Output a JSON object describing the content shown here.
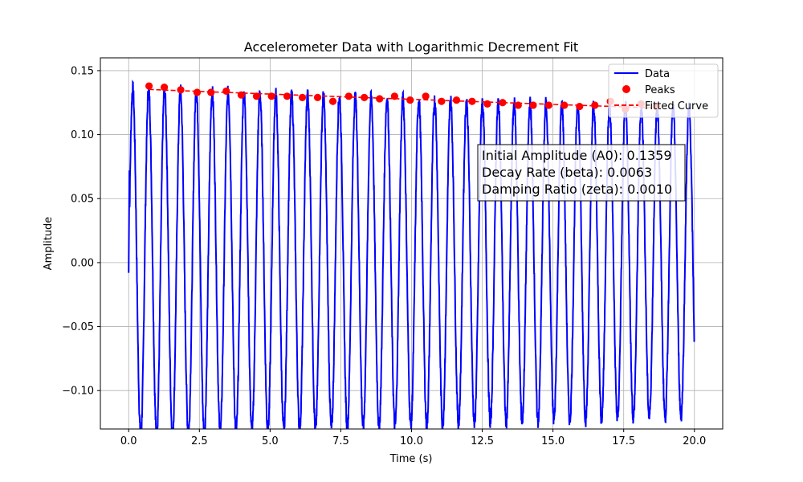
{
  "chart_data": {
    "type": "line",
    "title": "Accelerometer Data with Logarithmic Decrement Fit",
    "xlabel": "Time (s)",
    "ylabel": "Amplitude",
    "xlim": [
      -1.0,
      21.0
    ],
    "ylim": [
      -0.13,
      0.16
    ],
    "xticks": [
      0.0,
      2.5,
      5.0,
      7.5,
      10.0,
      12.5,
      15.0,
      17.5,
      20.0
    ],
    "xtick_labels": [
      "0.0",
      "2.5",
      "5.0",
      "7.5",
      "10.0",
      "12.5",
      "15.0",
      "17.5",
      "20.0"
    ],
    "yticks": [
      -0.1,
      -0.05,
      0.0,
      0.05,
      0.1,
      0.15
    ],
    "ytick_labels": [
      "−0.10",
      "−0.05",
      "0.00",
      "0.05",
      "0.10",
      "0.15"
    ],
    "grid": true,
    "legend_position": "top-right",
    "colors": {
      "data": "#0000ff",
      "peaks": "#ff0000",
      "fit": "#ff0000"
    },
    "series": [
      {
        "name": "Data",
        "kind": "line",
        "signal": {
          "x_start": 0.0,
          "x_end": 20.0,
          "frequency_hz": 1.78,
          "amplitude": 0.1359,
          "decay_rate": 0.0063,
          "offset": 0.012
        }
      },
      {
        "name": "Peaks",
        "kind": "scatter",
        "x": [
          0.72,
          1.26,
          1.84,
          2.42,
          2.91,
          3.45,
          3.98,
          4.52,
          5.05,
          5.6,
          6.14,
          6.68,
          7.22,
          7.78,
          8.33,
          8.87,
          9.4,
          9.95,
          10.5,
          11.06,
          11.59,
          12.14,
          12.68,
          13.22,
          13.77,
          14.3,
          14.85,
          15.4,
          15.94,
          16.48,
          17.03,
          17.56,
          18.11,
          18.65
        ],
        "y": [
          0.138,
          0.137,
          0.135,
          0.133,
          0.133,
          0.134,
          0.131,
          0.13,
          0.13,
          0.13,
          0.129,
          0.129,
          0.126,
          0.13,
          0.129,
          0.128,
          0.13,
          0.127,
          0.13,
          0.126,
          0.127,
          0.126,
          0.124,
          0.125,
          0.123,
          0.123,
          0.123,
          0.123,
          0.122,
          0.123,
          0.126,
          0.12,
          0.124,
          0.122
        ]
      },
      {
        "name": "Fitted Curve",
        "kind": "line",
        "style": "dashed",
        "fit": {
          "x_start": 0.72,
          "x_end": 18.65,
          "A0": 0.1359,
          "beta": 0.0063
        }
      }
    ],
    "annotation": {
      "lines": [
        "Initial Amplitude (A0): 0.1359",
        "Decay Rate (beta): 0.0063",
        "Damping Ratio (zeta): 0.0010"
      ]
    }
  }
}
